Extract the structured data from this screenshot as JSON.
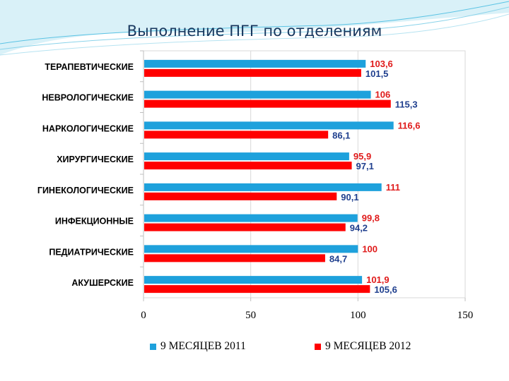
{
  "title": "Выполнение ПГГ по отделениям",
  "colors": {
    "series_2011": "#1ea1dc",
    "series_2012": "#ff0000",
    "label_2011": "#e01b1b",
    "label_2012": "#1f3f8e",
    "deco": "#5bc3e4"
  },
  "chart_data": {
    "type": "bar",
    "orientation": "horizontal",
    "title": "Выполнение ПГГ по отделениям",
    "categories": [
      "ТЕРАПЕВТИЧЕСКИЕ",
      "НЕВРОЛОГИЧЕСКИЕ",
      "НАРКОЛОГИЧЕСКИЕ",
      "ХИРУРГИЧЕСКИЕ",
      "ГИНЕКОЛОГИЧЕСКИЕ",
      "ИНФЕКЦИОННЫЕ",
      "ПЕДИАТРИЧЕСКИЕ",
      "АКУШЕРСКИЕ"
    ],
    "series": [
      {
        "name": "9 МЕСЯЦЕВ 2011",
        "values": [
          103.6,
          106,
          116.6,
          95.9,
          111,
          99.8,
          100,
          101.9
        ],
        "labels": [
          "103,6",
          "106",
          "116,6",
          "95,9",
          "111",
          "99,8",
          "100",
          "101,9"
        ]
      },
      {
        "name": "9 МЕСЯЦЕВ 2012",
        "values": [
          101.5,
          115.3,
          86.1,
          97.1,
          90.1,
          94.2,
          84.7,
          105.6
        ],
        "labels": [
          "101,5",
          "115,3",
          "86,1",
          "97,1",
          "90,1",
          "94,2",
          "84,7",
          "105,6"
        ]
      }
    ],
    "xlim": [
      0,
      150
    ],
    "xticks": [
      0,
      50,
      100,
      150
    ],
    "xtick_labels": [
      "0",
      "50",
      "100",
      "150"
    ],
    "grid": true,
    "legend_position": "bottom"
  }
}
